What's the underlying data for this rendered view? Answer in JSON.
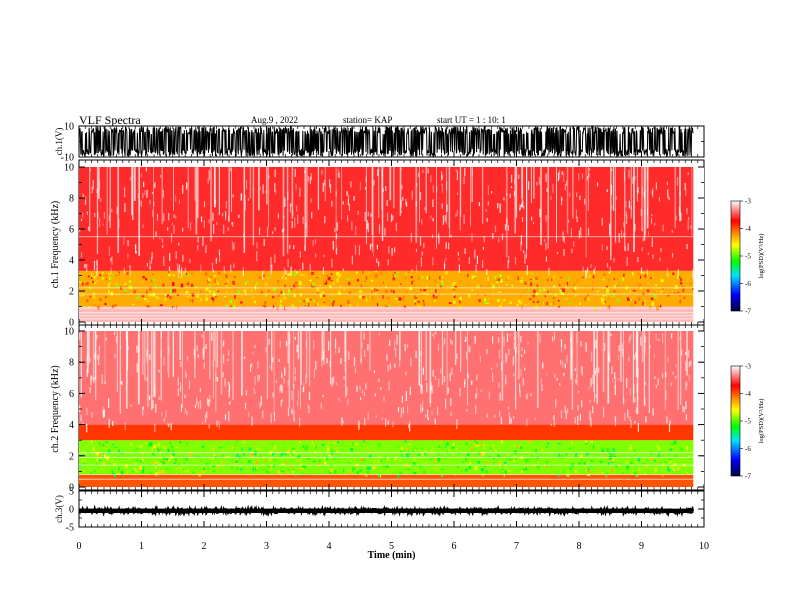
{
  "header": {
    "title": "VLF Spectra",
    "date": "Aug.9 , 2022",
    "station": "station= KAP",
    "start": "start UT = 1 : 10: 1"
  },
  "colors": {
    "spectrogram_base": "#ff0000",
    "trace": "#000000",
    "colormap": [
      "#ffffff",
      "#ff0000",
      "#ffb000",
      "#ffff00",
      "#00ff00",
      "#00e0ff",
      "#0000ff",
      "#000040"
    ]
  },
  "chart_data": [
    {
      "type": "line",
      "name": "ch1-waveform",
      "ylabel": "ch.1(V)",
      "ylim": [
        -10,
        10
      ],
      "yticks": [
        -10,
        10
      ],
      "xlim": [
        0,
        10
      ],
      "description_values": {
        "typical_amplitude_V": 8,
        "clipped_at_V": 10
      }
    },
    {
      "type": "heatmap",
      "name": "ch1-spectrogram",
      "ylabel": "ch.1 Frequency (kHz)",
      "ylim": [
        0,
        10
      ],
      "yticks": [
        0,
        2,
        4,
        6,
        8,
        10
      ],
      "xlim": [
        0,
        10
      ],
      "colorbar": {
        "label": "log(PSD)(V²/Hz)",
        "ticks": [
          -3,
          -4,
          -5,
          -6,
          -7
        ],
        "range": [
          -7,
          -3
        ]
      },
      "bands": [
        {
          "fmin": 0,
          "fmax": 1.0,
          "level": -3.2
        },
        {
          "fmin": 1.0,
          "fmax": 3.3,
          "level": -4.3
        },
        {
          "fmin": 3.3,
          "fmax": 10,
          "level": -3.6
        }
      ],
      "lines_khz": [
        5.5,
        2.2,
        1.8,
        0.9,
        0.6,
        0.4,
        0.2
      ]
    },
    {
      "type": "heatmap",
      "name": "ch2-spectrogram",
      "ylabel": "ch.2 Frequency (kHz)",
      "ylim": [
        0,
        10
      ],
      "yticks": [
        0,
        2,
        4,
        6,
        8,
        10
      ],
      "xlim": [
        0,
        10
      ],
      "colorbar": {
        "label": "log(PSD)(V²/Hz)",
        "ticks": [
          -3,
          -4,
          -5,
          -6,
          -7
        ],
        "range": [
          -7,
          -3
        ]
      },
      "bands": [
        {
          "fmin": 0,
          "fmax": 0.8,
          "level": -4.0
        },
        {
          "fmin": 0.8,
          "fmax": 3.0,
          "level": -4.9
        },
        {
          "fmin": 3.0,
          "fmax": 4.0,
          "level": -3.9
        },
        {
          "fmin": 4.0,
          "fmax": 10,
          "level": -3.4
        }
      ],
      "lines_khz": [
        2.2,
        1.9,
        1.4,
        0.8,
        0.5
      ]
    },
    {
      "type": "line",
      "name": "ch3-waveform",
      "ylabel": "ch.3(V)",
      "ylim": [
        -5,
        5
      ],
      "yticks": [
        -5,
        0,
        5
      ],
      "xlim": [
        0,
        10
      ],
      "description_values": {
        "typical_amplitude_V": 0.6,
        "offset_V": -0.5
      }
    }
  ],
  "time_axis": {
    "label": "Time (min)",
    "ticks": [
      0,
      1,
      2,
      3,
      4,
      5,
      6,
      7,
      8,
      9,
      10
    ],
    "data_end_min": 9.83
  }
}
